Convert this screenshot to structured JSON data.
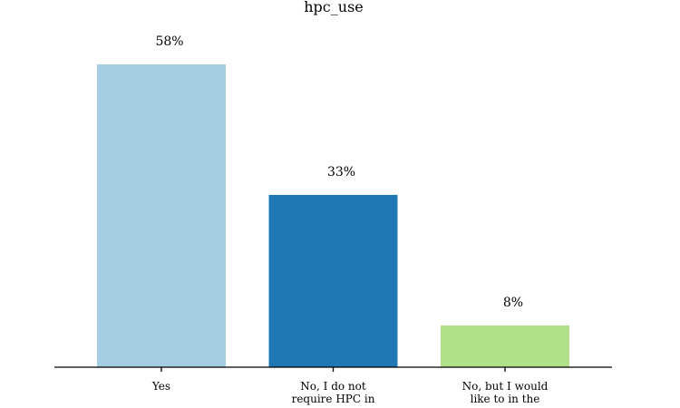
{
  "chart_data": {
    "type": "bar",
    "title": "hpc_use",
    "xlabel": "",
    "ylabel": "",
    "categories": [
      [
        "Yes"
      ],
      [
        "No, I do not",
        "require HPC in"
      ],
      [
        "No, but I would",
        "like to in the"
      ]
    ],
    "values": [
      58,
      33,
      8
    ],
    "data_labels": [
      "58%",
      "33%",
      "8%"
    ],
    "colors": [
      "#a6cee3",
      "#1f78b4",
      "#b2df8a"
    ],
    "ylim": [
      0,
      58
    ],
    "grid": false,
    "legend": "none"
  }
}
